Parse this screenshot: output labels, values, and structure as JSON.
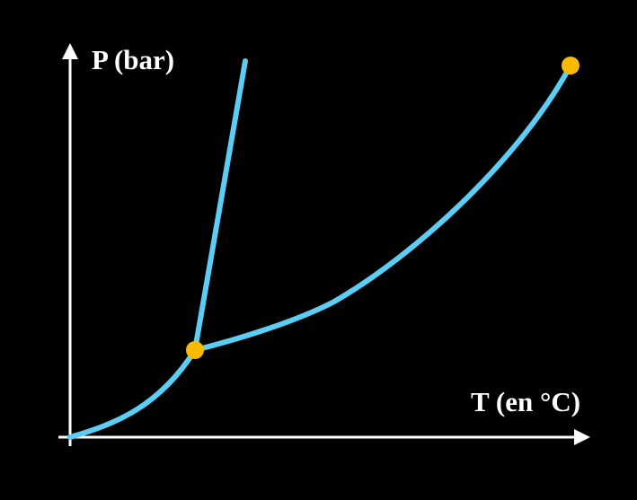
{
  "axes": {
    "y_label": "P (bar)",
    "x_label": "T (en °C)"
  }
}
